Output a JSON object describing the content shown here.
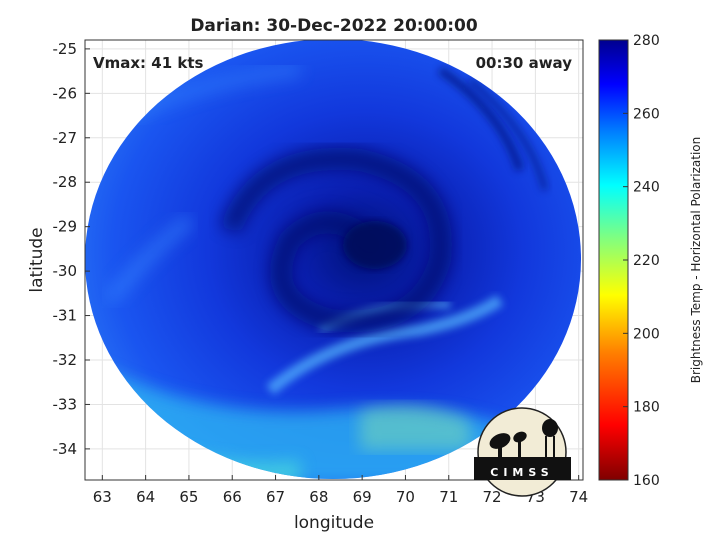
{
  "chart_data": {
    "type": "heatmap",
    "title": "Darian: 30-Dec-2022 20:00:00",
    "xlabel": "longitude",
    "ylabel": "latitude",
    "xlim": [
      62.6,
      74.1
    ],
    "ylim": [
      -34.7,
      -24.8
    ],
    "xticks": [
      63,
      64,
      65,
      66,
      67,
      68,
      69,
      70,
      71,
      72,
      73,
      74
    ],
    "yticks": [
      -25,
      -26,
      -27,
      -28,
      -29,
      -30,
      -31,
      -32,
      -33,
      -34
    ],
    "grid": true,
    "annotations": {
      "vmax": "Vmax: 41 kts",
      "time_away": "00:30 away"
    },
    "storm_center": {
      "lon": 69.0,
      "lat": -29.5
    },
    "colorbar": {
      "label": "Brightness Temp - Horizontal Polarization",
      "min": 160,
      "max": 280,
      "ticks": [
        280,
        260,
        240,
        220,
        200,
        180,
        160
      ],
      "colormap": [
        "#7f0000",
        "#ff0000",
        "#ff7f00",
        "#ffff00",
        "#7fff7f",
        "#00ffff",
        "#007fff",
        "#0000ff",
        "#00008f"
      ]
    },
    "logo": {
      "text": "CIMSS"
    }
  }
}
